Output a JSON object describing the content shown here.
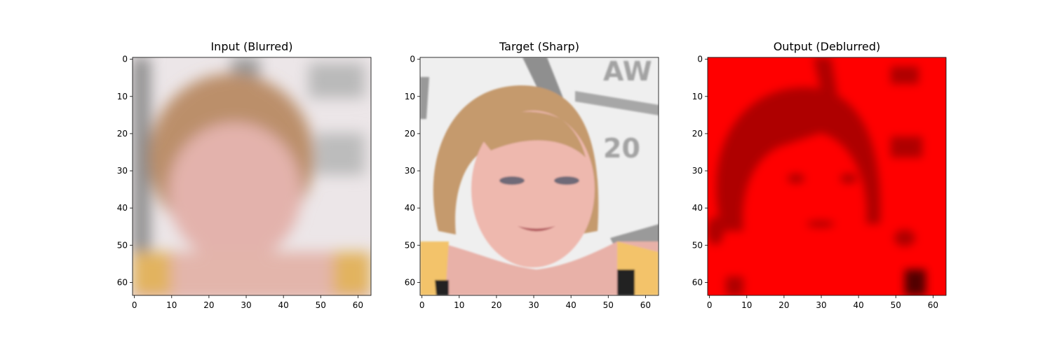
{
  "figure": {
    "panels": [
      {
        "id": "input",
        "title": "Input (Blurred)",
        "image_description_icon": "blurred-face-image",
        "xticks": [
          "0",
          "10",
          "20",
          "30",
          "40",
          "50",
          "60"
        ],
        "yticks": [
          "0",
          "10",
          "20",
          "30",
          "40",
          "50",
          "60"
        ]
      },
      {
        "id": "target",
        "title": "Target (Sharp)",
        "image_description_icon": "sharp-face-image",
        "xticks": [
          "0",
          "10",
          "20",
          "30",
          "40",
          "50",
          "60"
        ],
        "yticks": [
          "0",
          "10",
          "20",
          "30",
          "40",
          "50",
          "60"
        ]
      },
      {
        "id": "output",
        "title": "Output (Deblurred)",
        "image_description_icon": "red-deblurred-face-image",
        "xticks": [
          "0",
          "10",
          "20",
          "30",
          "40",
          "50",
          "60"
        ],
        "yticks": [
          "0",
          "10",
          "20",
          "30",
          "40",
          "50",
          "60"
        ]
      }
    ]
  },
  "colors": {
    "input_bg": "#ece6e8",
    "input_hair": "#bb8f6a",
    "input_skin": "#e3b2ac",
    "input_shirt": "#e2b35f",
    "target_bg": "#efefef",
    "target_hair": "#c59a6d",
    "target_skin": "#eeb8ae",
    "target_shirt": "#f3c36b",
    "output_bg": "#ff0000",
    "output_dark": "#a60000"
  }
}
